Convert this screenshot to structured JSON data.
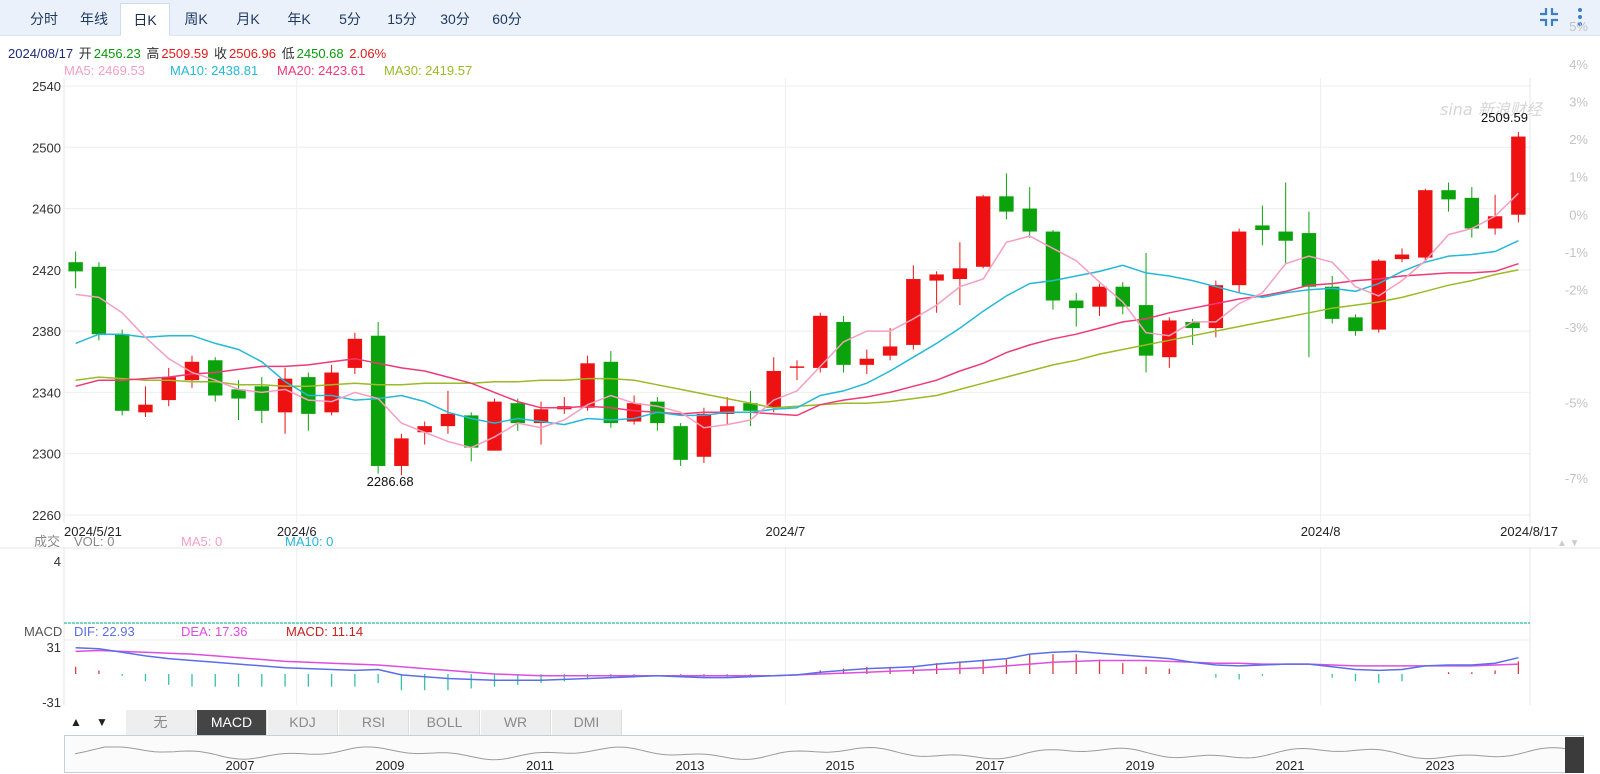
{
  "tabs": [
    "分时",
    "年线",
    "日K",
    "周K",
    "月K",
    "年K",
    "5分",
    "15分",
    "30分",
    "60分"
  ],
  "active_tab": "日K",
  "info": {
    "date": "2024/08/17",
    "open_label": "开",
    "open": "2456.23",
    "high_label": "高",
    "high": "2509.59",
    "close_label": "收",
    "close": "2506.96",
    "low_label": "低",
    "low": "2450.68",
    "change": "2.06%"
  },
  "ma": {
    "ma5": "MA5: 2469.53",
    "ma10": "MA10: 2438.81",
    "ma20": "MA20: 2423.61",
    "ma30": "MA30: 2419.57"
  },
  "colors": {
    "up": "#ee1111",
    "down": "#0ba30b",
    "ma5": "#f59fc0",
    "ma10": "#25b8d8",
    "ma20": "#ee3a78",
    "ma30": "#9abb25",
    "dif": "#5a6ee8",
    "dea": "#dd4ee0"
  },
  "chart_data": {
    "type": "candlestick",
    "x_labels": [
      "2024/5/21",
      "2024/6",
      "2024/7",
      "2024/8",
      "2024/8/17"
    ],
    "y_ticks": [
      "2540",
      "2500",
      "2460",
      "2420",
      "2380",
      "2340",
      "2300",
      "2260"
    ],
    "y_pct_ticks": [
      "5%",
      "4%",
      "3%",
      "2%",
      "1%",
      "0%",
      "-1%",
      "-2%",
      "-3%",
      "-5%",
      "-7%"
    ],
    "ylim": [
      2260,
      2540
    ],
    "max_label": "2509.59",
    "min_label": "2286.68",
    "candles": [
      [
        2425,
        2419,
        2432,
        2408
      ],
      [
        2422,
        2378,
        2425,
        2374
      ],
      [
        2378,
        2328,
        2381,
        2325
      ],
      [
        2327,
        2332,
        2344,
        2324
      ],
      [
        2335,
        2350,
        2356,
        2331
      ],
      [
        2348,
        2360,
        2364,
        2343
      ],
      [
        2361,
        2338,
        2363,
        2334
      ],
      [
        2342,
        2336,
        2348,
        2322
      ],
      [
        2344,
        2328,
        2350,
        2320
      ],
      [
        2327,
        2349,
        2356,
        2313
      ],
      [
        2350,
        2326,
        2353,
        2315
      ],
      [
        2327,
        2353,
        2358,
        2325
      ],
      [
        2356,
        2375,
        2379,
        2352
      ],
      [
        2377,
        2292,
        2386,
        2287
      ],
      [
        2292,
        2310,
        2313,
        2286
      ],
      [
        2314,
        2318,
        2321,
        2306
      ],
      [
        2318,
        2326,
        2341,
        2313
      ],
      [
        2325,
        2304,
        2327,
        2295
      ],
      [
        2302,
        2334,
        2336,
        2302
      ],
      [
        2333,
        2320,
        2336,
        2315
      ],
      [
        2320,
        2329,
        2334,
        2306
      ],
      [
        2329,
        2331,
        2337,
        2326
      ],
      [
        2330,
        2359,
        2364,
        2328
      ],
      [
        2360,
        2320,
        2367,
        2317
      ],
      [
        2321,
        2333,
        2338,
        2319
      ],
      [
        2334,
        2320,
        2337,
        2315
      ],
      [
        2318,
        2296,
        2320,
        2292
      ],
      [
        2298,
        2326,
        2330,
        2294
      ],
      [
        2326,
        2331,
        2337,
        2319
      ],
      [
        2333,
        2328,
        2341,
        2318
      ],
      [
        2330,
        2354,
        2363,
        2327
      ],
      [
        2357,
        2357,
        2361,
        2348
      ],
      [
        2356,
        2390,
        2392,
        2353
      ],
      [
        2386,
        2358,
        2390,
        2353
      ],
      [
        2358,
        2362,
        2368,
        2352
      ],
      [
        2364,
        2370,
        2382,
        2361
      ],
      [
        2371,
        2414,
        2423,
        2368
      ],
      [
        2413,
        2417,
        2419,
        2392
      ],
      [
        2414,
        2421,
        2438,
        2397
      ],
      [
        2422,
        2468,
        2469,
        2421
      ],
      [
        2468,
        2458,
        2483,
        2453
      ],
      [
        2460,
        2445,
        2474,
        2441
      ],
      [
        2445,
        2400,
        2446,
        2394
      ],
      [
        2400,
        2395,
        2405,
        2383
      ],
      [
        2396,
        2409,
        2411,
        2390
      ],
      [
        2409,
        2396,
        2412,
        2391
      ],
      [
        2397,
        2364,
        2431,
        2353
      ],
      [
        2363,
        2387,
        2389,
        2356
      ],
      [
        2386,
        2382,
        2388,
        2371
      ],
      [
        2382,
        2410,
        2413,
        2376
      ],
      [
        2410,
        2445,
        2447,
        2405
      ],
      [
        2449,
        2446,
        2462,
        2436
      ],
      [
        2445,
        2439,
        2477,
        2424
      ],
      [
        2444,
        2409,
        2458,
        2363
      ],
      [
        2409,
        2388,
        2416,
        2385
      ],
      [
        2389,
        2380,
        2391,
        2377
      ],
      [
        2381,
        2426,
        2427,
        2379
      ],
      [
        2427,
        2430,
        2434,
        2425
      ],
      [
        2428,
        2472,
        2473,
        2426
      ],
      [
        2472,
        2466,
        2477,
        2458
      ],
      [
        2467,
        2447,
        2474,
        2441
      ],
      [
        2447,
        2455,
        2469,
        2443
      ],
      [
        2456,
        2507,
        2510,
        2451
      ]
    ],
    "ma5": [
      2404,
      2402,
      2392,
      2376,
      2362,
      2353,
      2348,
      2342,
      2340,
      2342,
      2335,
      2334,
      2340,
      2336,
      2320,
      2314,
      2308,
      2304,
      2311,
      2320,
      2317,
      2322,
      2332,
      2338,
      2333,
      2331,
      2327,
      2317,
      2319,
      2322,
      2335,
      2341,
      2357,
      2373,
      2380,
      2380,
      2388,
      2397,
      2409,
      2414,
      2438,
      2442,
      2434,
      2426,
      2412,
      2399,
      2379,
      2377,
      2386,
      2386,
      2398,
      2405,
      2424,
      2429,
      2425,
      2409,
      2403,
      2413,
      2426,
      2443,
      2447,
      2455,
      2470
    ],
    "ma10": [
      2372,
      2378,
      2378,
      2376,
      2377,
      2377,
      2372,
      2368,
      2360,
      2347,
      2338,
      2338,
      2335,
      2336,
      2338,
      2334,
      2327,
      2323,
      2320,
      2323,
      2321,
      2319,
      2323,
      2322,
      2323,
      2327,
      2325,
      2325,
      2327,
      2327,
      2329,
      2330,
      2338,
      2341,
      2346,
      2354,
      2363,
      2372,
      2382,
      2393,
      2403,
      2411,
      2413,
      2416,
      2419,
      2423,
      2418,
      2416,
      2413,
      2409,
      2405,
      2402,
      2405,
      2407,
      2408,
      2406,
      2411,
      2419,
      2425,
      2429,
      2430,
      2432,
      2439
    ],
    "ma20": [
      2344,
      2348,
      2348,
      2349,
      2350,
      2352,
      2353,
      2355,
      2357,
      2357,
      2358,
      2360,
      2362,
      2359,
      2356,
      2354,
      2350,
      2346,
      2340,
      2334,
      2330,
      2330,
      2331,
      2330,
      2328,
      2327,
      2326,
      2327,
      2327,
      2327,
      2326,
      2325,
      2332,
      2335,
      2337,
      2340,
      2344,
      2348,
      2354,
      2359,
      2366,
      2371,
      2375,
      2378,
      2382,
      2386,
      2388,
      2392,
      2395,
      2398,
      2401,
      2403,
      2406,
      2410,
      2411,
      2413,
      2414,
      2416,
      2417,
      2418,
      2418,
      2419,
      2424
    ],
    "ma30": [
      2348,
      2350,
      2349,
      2348,
      2348,
      2347,
      2347,
      2345,
      2345,
      2344,
      2344,
      2345,
      2346,
      2345,
      2345,
      2346,
      2346,
      2346,
      2347,
      2347,
      2348,
      2348,
      2349,
      2349,
      2348,
      2345,
      2342,
      2339,
      2336,
      2333,
      2330,
      2331,
      2332,
      2333,
      2333,
      2334,
      2336,
      2338,
      2342,
      2346,
      2350,
      2354,
      2358,
      2361,
      2365,
      2368,
      2371,
      2374,
      2377,
      2380,
      2383,
      2386,
      2389,
      2392,
      2395,
      2397,
      2399,
      2402,
      2406,
      2410,
      2413,
      2417,
      2420
    ],
    "volume": {
      "label": "成交",
      "vol": "VOL: 0",
      "ma5": "MA5: 0",
      "ma10": "MA10: 0",
      "y_max": "4"
    },
    "macd": {
      "label": "MACD",
      "dif": "DIF: 22.93",
      "dea": "DEA: 17.36",
      "macd": "MACD: 11.14",
      "y_ticks": [
        "31",
        "-31"
      ],
      "dif_values": [
        29,
        28,
        24,
        20,
        17,
        15,
        13,
        11,
        9,
        7,
        6,
        5,
        4,
        5,
        -1,
        -3,
        -5,
        -6,
        -7,
        -7,
        -7,
        -6,
        -5,
        -4,
        -3,
        -2,
        -3,
        -4,
        -4,
        -3,
        -2,
        -1,
        2,
        4,
        6,
        7,
        8,
        11,
        13,
        15,
        17,
        22,
        24,
        25,
        23,
        21,
        19,
        17,
        13,
        10,
        9,
        10,
        11,
        11,
        8,
        5,
        4,
        5,
        9,
        10,
        10,
        12,
        18
      ],
      "dea_values": [
        25,
        26,
        25,
        24,
        23,
        22,
        20,
        18,
        16,
        14,
        13,
        12,
        11,
        10,
        8,
        6,
        4,
        2,
        0,
        -1,
        -2,
        -2,
        -2,
        -2,
        -2,
        -2,
        -2,
        -2,
        -2,
        -2,
        -2,
        -1,
        0,
        1,
        2,
        3,
        4,
        5,
        6,
        7,
        9,
        11,
        13,
        14,
        15,
        15,
        15,
        14,
        13,
        12,
        12,
        11,
        11,
        11,
        10,
        9,
        9,
        9,
        9,
        9,
        9,
        10,
        11
      ],
      "hist_values": [
        8,
        4,
        -2,
        -8,
        -12,
        -14,
        -14,
        -14,
        -14,
        -14,
        -14,
        -14,
        -14,
        -10,
        -18,
        -18,
        -18,
        -16,
        -14,
        -12,
        -10,
        -8,
        -6,
        -4,
        -2,
        0,
        -2,
        -4,
        -4,
        -2,
        0,
        0,
        4,
        6,
        8,
        8,
        8,
        12,
        14,
        16,
        16,
        22,
        22,
        22,
        16,
        12,
        8,
        6,
        0,
        -4,
        -6,
        -2,
        0,
        0,
        -4,
        -8,
        -10,
        -8,
        0,
        2,
        2,
        4,
        14
      ]
    },
    "indicator_buttons": [
      "无",
      "MACD",
      "KDJ",
      "RSI",
      "BOLL",
      "WR",
      "DMI"
    ],
    "active_indicator": "MACD",
    "mini_years": [
      "2007",
      "2009",
      "2011",
      "2013",
      "2015",
      "2017",
      "2019",
      "2021",
      "2023"
    ],
    "watermark": "sina 新浪财经"
  }
}
